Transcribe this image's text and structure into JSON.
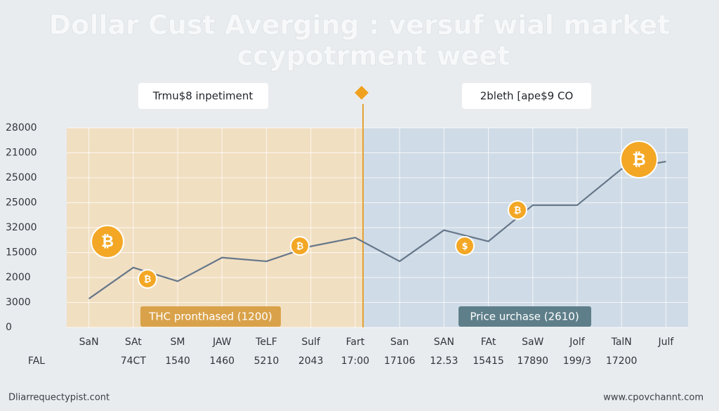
{
  "chart_data": {
    "type": "line",
    "title": "Dollar Cust Averging : versuf wial market",
    "subtitle": "ccypotrment  weet",
    "annotations": [
      "Trmu$8 inpetiment",
      "2bleth [ape$9 CO"
    ],
    "buttons": [
      "THC pronthased (1200)",
      "Price urchase (2610)"
    ],
    "footer": [
      "Dliarrequectypist.cont",
      "www.cpovchannt.com"
    ],
    "categories": [
      "SaN",
      "SAt",
      "SM",
      "JAW",
      "TeLF",
      "Sulf",
      "Fart",
      "San",
      "SAN",
      "FAt",
      "SaW",
      "Jolf",
      "TalN",
      "Julf"
    ],
    "row_labels": [
      "FAL",
      "74CT",
      "1540",
      "1460",
      "5210",
      "2043",
      "17:00",
      "17106",
      "12.53",
      "15415",
      "17890",
      "199/3",
      "17200"
    ],
    "series": [
      {
        "color": "#66778a",
        "values": [
          1.15,
          2.4,
          1.85,
          2.8,
          2.65,
          3.25,
          3.6,
          2.65,
          3.9,
          3.45,
          4.9,
          4.9,
          6.35,
          6.65
        ]
      }
    ],
    "ylim": [
      0,
      8
    ],
    "yticks": [
      {
        "value": 0,
        "label": "0"
      },
      {
        "value": 1,
        "label": "3000"
      },
      {
        "value": 2,
        "label": "2000"
      },
      {
        "value": 3,
        "label": "15000"
      },
      {
        "value": 4,
        "label": "32000"
      },
      {
        "value": 5,
        "label": "25000"
      },
      {
        "value": 6,
        "label": "25000"
      },
      {
        "value": 7,
        "label": "21000"
      },
      {
        "value": 8,
        "label": "28000"
      }
    ],
    "grid": true
  }
}
